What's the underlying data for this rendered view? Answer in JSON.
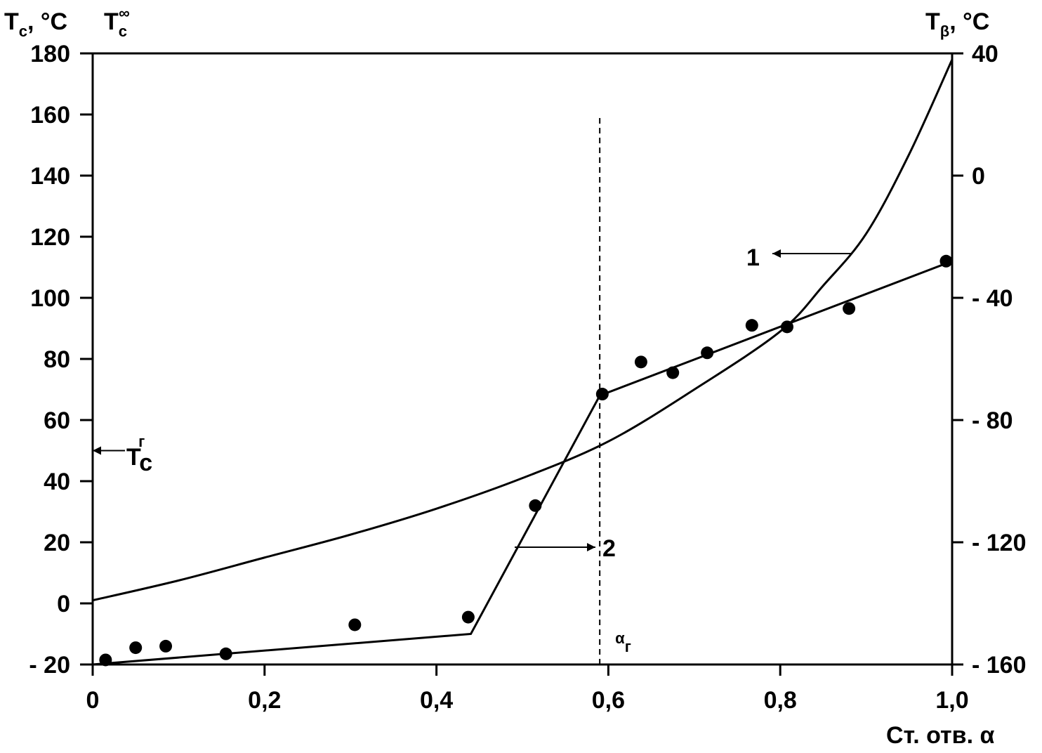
{
  "chart_data": {
    "type": "line",
    "x_axis": {
      "label": "Ст. отв. α",
      "range": [
        0,
        1.0
      ],
      "ticks": [
        0,
        0.2,
        0.4,
        0.6,
        0.8,
        1.0
      ],
      "tick_labels": [
        "0",
        "0,2",
        "0,4",
        "0,6",
        "0,8",
        "1,0"
      ]
    },
    "y_left": {
      "label_main": "T",
      "label_sub": "c",
      "label_unit": ", °C",
      "label2_main": "T",
      "label2_sub": "c",
      "label2_sup": "∞",
      "range": [
        -20,
        180
      ],
      "ticks": [
        -20,
        0,
        20,
        40,
        60,
        80,
        100,
        120,
        140,
        160,
        180
      ],
      "tick_labels": [
        "- 20",
        "0",
        "20",
        "40",
        "60",
        "80",
        "100",
        "120",
        "140",
        "160",
        "180"
      ]
    },
    "y_right": {
      "label_main": "T",
      "label_sub": "β",
      "label_unit": ", °C",
      "range": [
        -160,
        40
      ],
      "ticks": [
        -160,
        -120,
        -80,
        -40,
        0,
        40
      ],
      "tick_labels": [
        "- 160",
        "- 120",
        "- 80",
        "- 40",
        "0",
        "40"
      ]
    },
    "series": [
      {
        "name": "1",
        "axis": "left",
        "style": "curve",
        "x": [
          0.0,
          0.1,
          0.2,
          0.3,
          0.4,
          0.5,
          0.6,
          0.7,
          0.8,
          0.85,
          0.9,
          0.95,
          1.0
        ],
        "y": [
          1,
          7.5,
          15,
          22.5,
          31,
          41,
          53,
          70,
          89,
          104,
          121,
          147,
          178
        ]
      },
      {
        "name": "2",
        "axis": "right",
        "style": "segments",
        "x": [
          0.0,
          0.44,
          0.59,
          1.0
        ],
        "y": [
          -160,
          -150,
          -72,
          -28
        ]
      },
      {
        "name": "2-points",
        "axis": "right",
        "style": "markers",
        "x": [
          0.015,
          0.05,
          0.085,
          0.155,
          0.305,
          0.437,
          0.515,
          0.593,
          0.638,
          0.675,
          0.715,
          0.767,
          0.808,
          0.88,
          0.993
        ],
        "y": [
          -158.5,
          -154.5,
          -154,
          -156.5,
          -147,
          -144.5,
          -108,
          -71.5,
          -61,
          -64.5,
          -58,
          -49,
          -49.5,
          -43.5,
          -28
        ]
      }
    ],
    "vertical_line": {
      "x": 0.59,
      "style": "dashed",
      "label_main": "α",
      "label_sub": "г"
    },
    "markers": [
      {
        "label_main": "T",
        "label_sub": "c",
        "label_sup": "г",
        "axis": "left",
        "y": 50,
        "points_to": "left-axis"
      }
    ],
    "annotations": [
      {
        "text": "1",
        "points_to": "series-1",
        "direction": "left"
      },
      {
        "text": "2",
        "points_to": "series-2",
        "direction": "right"
      }
    ],
    "grid": false,
    "legend": "none"
  }
}
